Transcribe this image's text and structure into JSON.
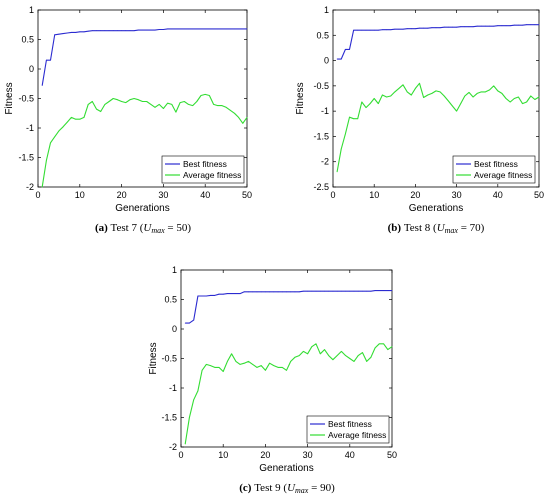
{
  "chart_data": [
    {
      "type": "line",
      "caption": {
        "label": "(a)",
        "text": "Test 7 (",
        "var": "U",
        "sub": "max",
        "eq": " = 50)"
      },
      "xlabel": "Generations",
      "ylabel": "Fitness",
      "xlim": [
        0,
        50
      ],
      "ylim": [
        -2,
        1
      ],
      "xticks": [
        0,
        10,
        20,
        30,
        40,
        50
      ],
      "yticks": [
        -2,
        -1.5,
        -1,
        -0.5,
        0,
        0.5,
        1
      ],
      "ytick_labels": [
        "-2",
        "-1.5",
        "-1",
        "-0.5",
        "0",
        "0.5",
        "1"
      ],
      "legend_position": "bottom-right",
      "series": [
        {
          "name": "Best fitness",
          "color": "#2b2bd0",
          "x": [
            1,
            2,
            3,
            4,
            5,
            6,
            7,
            8,
            9,
            10,
            11,
            12,
            13,
            14,
            15,
            16,
            17,
            18,
            19,
            20,
            21,
            22,
            23,
            24,
            25,
            26,
            27,
            28,
            29,
            30,
            31,
            32,
            33,
            34,
            35,
            36,
            37,
            38,
            39,
            40,
            41,
            42,
            43,
            44,
            45,
            46,
            47,
            48,
            49,
            50
          ],
          "values": [
            -0.28,
            0.15,
            0.15,
            0.58,
            0.59,
            0.6,
            0.61,
            0.62,
            0.62,
            0.63,
            0.63,
            0.64,
            0.65,
            0.65,
            0.65,
            0.65,
            0.65,
            0.65,
            0.65,
            0.65,
            0.65,
            0.65,
            0.65,
            0.66,
            0.66,
            0.66,
            0.66,
            0.66,
            0.67,
            0.67,
            0.68,
            0.68,
            0.68,
            0.68,
            0.68,
            0.68,
            0.68,
            0.68,
            0.68,
            0.68,
            0.68,
            0.68,
            0.68,
            0.68,
            0.68,
            0.68,
            0.68,
            0.68,
            0.68,
            0.68
          ]
        },
        {
          "name": "Average fitness",
          "color": "#33dd33",
          "x": [
            1,
            2,
            3,
            4,
            5,
            6,
            7,
            8,
            9,
            10,
            11,
            12,
            13,
            14,
            15,
            16,
            17,
            18,
            19,
            20,
            21,
            22,
            23,
            24,
            25,
            26,
            27,
            28,
            29,
            30,
            31,
            32,
            33,
            34,
            35,
            36,
            37,
            38,
            39,
            40,
            41,
            42,
            43,
            44,
            45,
            46,
            47,
            48,
            49,
            50
          ],
          "values": [
            -2,
            -1.55,
            -1.25,
            -1.15,
            -1.05,
            -0.98,
            -0.9,
            -0.82,
            -0.85,
            -0.85,
            -0.82,
            -0.6,
            -0.55,
            -0.68,
            -0.72,
            -0.6,
            -0.55,
            -0.5,
            -0.52,
            -0.55,
            -0.57,
            -0.52,
            -0.5,
            -0.52,
            -0.55,
            -0.55,
            -0.6,
            -0.65,
            -0.6,
            -0.67,
            -0.58,
            -0.6,
            -0.73,
            -0.57,
            -0.55,
            -0.6,
            -0.62,
            -0.55,
            -0.45,
            -0.43,
            -0.45,
            -0.6,
            -0.62,
            -0.62,
            -0.65,
            -0.7,
            -0.75,
            -0.82,
            -0.92,
            -0.82
          ]
        }
      ]
    },
    {
      "type": "line",
      "caption": {
        "label": "(b)",
        "text": "Test 8 (",
        "var": "U",
        "sub": "max",
        "eq": " = 70)"
      },
      "xlabel": "Generations",
      "ylabel": "Fitness",
      "xlim": [
        0,
        50
      ],
      "ylim": [
        -2.5,
        1
      ],
      "xticks": [
        0,
        10,
        20,
        30,
        40,
        50
      ],
      "yticks": [
        -2.5,
        -2,
        -1.5,
        -1,
        -0.5,
        0,
        0.5,
        1
      ],
      "ytick_labels": [
        "-2.5",
        "-2",
        "-1.5",
        "-1",
        "-0.5",
        "0",
        "0.5",
        "1"
      ],
      "legend_position": "bottom-right",
      "series": [
        {
          "name": "Best fitness",
          "color": "#2b2bd0",
          "x": [
            1,
            2,
            3,
            4,
            5,
            6,
            7,
            8,
            9,
            10,
            11,
            12,
            13,
            14,
            15,
            16,
            17,
            18,
            19,
            20,
            21,
            22,
            23,
            24,
            25,
            26,
            27,
            28,
            29,
            30,
            31,
            32,
            33,
            34,
            35,
            36,
            37,
            38,
            39,
            40,
            41,
            42,
            43,
            44,
            45,
            46,
            47,
            48,
            49,
            50
          ],
          "values": [
            0.03,
            0.03,
            0.22,
            0.22,
            0.6,
            0.6,
            0.6,
            0.6,
            0.6,
            0.6,
            0.6,
            0.61,
            0.61,
            0.61,
            0.62,
            0.62,
            0.62,
            0.63,
            0.63,
            0.63,
            0.64,
            0.64,
            0.64,
            0.65,
            0.65,
            0.65,
            0.66,
            0.66,
            0.66,
            0.66,
            0.67,
            0.67,
            0.67,
            0.67,
            0.68,
            0.68,
            0.68,
            0.68,
            0.68,
            0.69,
            0.69,
            0.69,
            0.69,
            0.7,
            0.7,
            0.7,
            0.71,
            0.71,
            0.71,
            0.71
          ]
        },
        {
          "name": "Average fitness",
          "color": "#33dd33",
          "x": [
            1,
            2,
            3,
            4,
            5,
            6,
            7,
            8,
            9,
            10,
            11,
            12,
            13,
            14,
            15,
            16,
            17,
            18,
            19,
            20,
            21,
            22,
            23,
            24,
            25,
            26,
            27,
            28,
            29,
            30,
            31,
            32,
            33,
            34,
            35,
            36,
            37,
            38,
            39,
            40,
            41,
            42,
            43,
            44,
            45,
            46,
            47,
            48,
            49,
            50
          ],
          "values": [
            -2.2,
            -1.75,
            -1.45,
            -1.12,
            -1.15,
            -1.15,
            -0.82,
            -0.93,
            -0.85,
            -0.75,
            -0.85,
            -0.68,
            -0.72,
            -0.7,
            -0.62,
            -0.55,
            -0.48,
            -0.62,
            -0.68,
            -0.55,
            -0.45,
            -0.73,
            -0.68,
            -0.65,
            -0.6,
            -0.62,
            -0.7,
            -0.8,
            -0.9,
            -1.0,
            -0.85,
            -0.7,
            -0.63,
            -0.72,
            -0.65,
            -0.62,
            -0.62,
            -0.58,
            -0.5,
            -0.6,
            -0.65,
            -0.75,
            -0.82,
            -0.75,
            -0.72,
            -0.85,
            -0.82,
            -0.7,
            -0.77,
            -0.72
          ]
        }
      ]
    },
    {
      "type": "line",
      "caption": {
        "label": "(c)",
        "text": "Test 9 (",
        "var": "U",
        "sub": "max",
        "eq": " = 90)"
      },
      "xlabel": "Generations",
      "ylabel": "Fitness",
      "xlim": [
        0,
        50
      ],
      "ylim": [
        -2,
        1
      ],
      "xticks": [
        0,
        10,
        20,
        30,
        40,
        50
      ],
      "yticks": [
        -2,
        -1.5,
        -1,
        -0.5,
        0,
        0.5,
        1
      ],
      "ytick_labels": [
        "-2",
        "-1.5",
        "-1",
        "-0.5",
        "0",
        "0.5",
        "1"
      ],
      "legend_position": "bottom-right",
      "series": [
        {
          "name": "Best fitness",
          "color": "#2b2bd0",
          "x": [
            1,
            2,
            3,
            4,
            5,
            6,
            7,
            8,
            9,
            10,
            11,
            12,
            13,
            14,
            15,
            16,
            17,
            18,
            19,
            20,
            21,
            22,
            23,
            24,
            25,
            26,
            27,
            28,
            29,
            30,
            31,
            32,
            33,
            34,
            35,
            36,
            37,
            38,
            39,
            40,
            41,
            42,
            43,
            44,
            45,
            46,
            47,
            48,
            49,
            50
          ],
          "values": [
            0.1,
            0.1,
            0.15,
            0.56,
            0.56,
            0.56,
            0.57,
            0.57,
            0.59,
            0.59,
            0.6,
            0.6,
            0.6,
            0.6,
            0.63,
            0.63,
            0.63,
            0.63,
            0.63,
            0.63,
            0.63,
            0.63,
            0.63,
            0.63,
            0.63,
            0.63,
            0.63,
            0.63,
            0.64,
            0.64,
            0.64,
            0.64,
            0.64,
            0.64,
            0.64,
            0.64,
            0.64,
            0.64,
            0.64,
            0.64,
            0.64,
            0.64,
            0.64,
            0.64,
            0.64,
            0.65,
            0.65,
            0.65,
            0.65,
            0.65
          ]
        },
        {
          "name": "Average fitness",
          "color": "#33dd33",
          "x": [
            1,
            2,
            3,
            4,
            5,
            6,
            7,
            8,
            9,
            10,
            11,
            12,
            13,
            14,
            15,
            16,
            17,
            18,
            19,
            20,
            21,
            22,
            23,
            24,
            25,
            26,
            27,
            28,
            29,
            30,
            31,
            32,
            33,
            34,
            35,
            36,
            37,
            38,
            39,
            40,
            41,
            42,
            43,
            44,
            45,
            46,
            47,
            48,
            49,
            50
          ],
          "values": [
            -1.95,
            -1.5,
            -1.2,
            -1.05,
            -0.7,
            -0.6,
            -0.62,
            -0.65,
            -0.65,
            -0.72,
            -0.55,
            -0.42,
            -0.55,
            -0.6,
            -0.58,
            -0.55,
            -0.6,
            -0.65,
            -0.62,
            -0.7,
            -0.58,
            -0.62,
            -0.65,
            -0.65,
            -0.7,
            -0.55,
            -0.48,
            -0.45,
            -0.38,
            -0.42,
            -0.3,
            -0.25,
            -0.42,
            -0.35,
            -0.45,
            -0.52,
            -0.45,
            -0.38,
            -0.45,
            -0.5,
            -0.55,
            -0.45,
            -0.4,
            -0.55,
            -0.48,
            -0.32,
            -0.25,
            -0.25,
            -0.35,
            -0.3
          ]
        }
      ]
    }
  ]
}
